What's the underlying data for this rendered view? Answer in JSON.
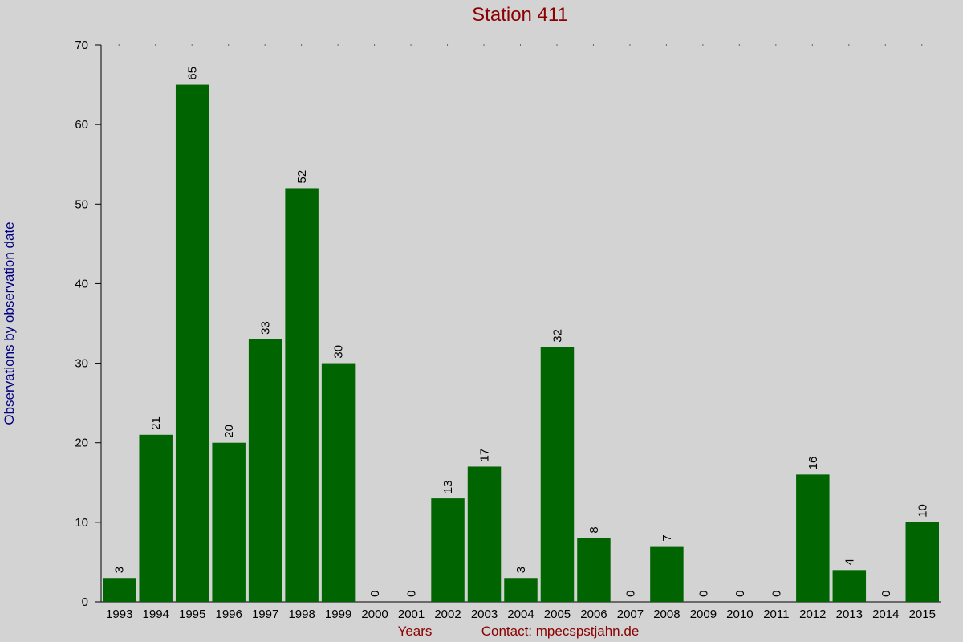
{
  "chart_data": {
    "type": "bar",
    "title": "Station 411",
    "y_label": "Observations by observation date",
    "x_label": "Years",
    "note": "Contact: mpecspstjahn.de",
    "categories": [
      "1993",
      "1994",
      "1995",
      "1996",
      "1997",
      "1998",
      "1999",
      "2000",
      "2001",
      "2002",
      "2003",
      "2004",
      "2005",
      "2006",
      "2007",
      "2008",
      "2009",
      "2010",
      "2011",
      "2012",
      "2013",
      "2014",
      "2015"
    ],
    "values": [
      3,
      21,
      65,
      20,
      33,
      52,
      30,
      0,
      0,
      13,
      17,
      3,
      32,
      8,
      0,
      7,
      0,
      0,
      0,
      16,
      4,
      0,
      10
    ],
    "color": "#006400",
    "ylim": [
      0,
      70
    ],
    "yticks": [
      0,
      10,
      20,
      30,
      40,
      50,
      60,
      70
    ]
  }
}
